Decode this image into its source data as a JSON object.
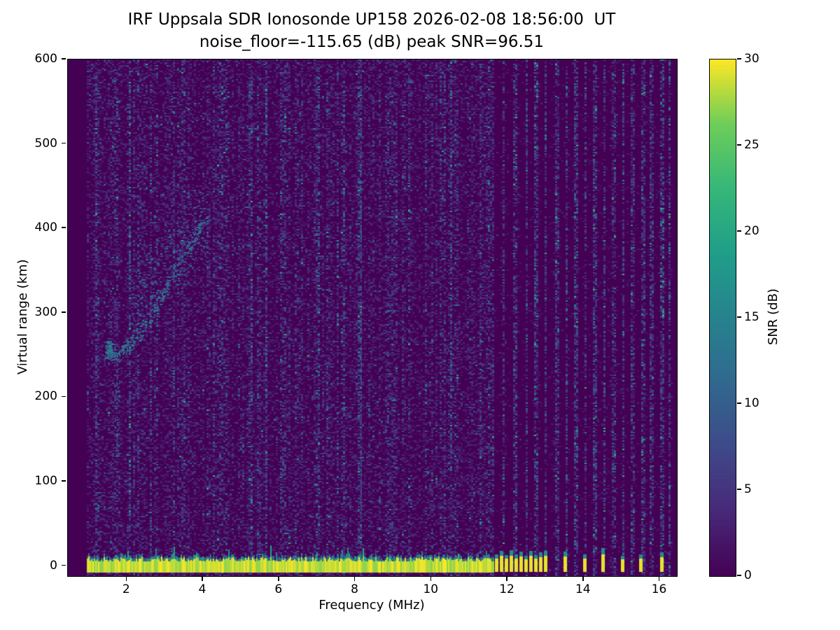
{
  "header": {
    "title_line1": "IRF Uppsala SDR Ionosonde UP158 2026-02-08 18:56:00  UT",
    "title_line2": "noise_floor=-115.65 (dB) peak SNR=96.51"
  },
  "chart_data": {
    "type": "heatmap",
    "title": "IRF Uppsala SDR Ionosonde UP158 2026-02-08 18:56:00  UT",
    "subtitle": "noise_floor=-115.65 (dB) peak SNR=96.51",
    "station": "IRF Uppsala SDR Ionosonde UP158",
    "timestamp_ut": "2026-02-08 18:56:00",
    "noise_floor_db": -115.65,
    "peak_snr_db": 96.51,
    "xlabel": "Frequency (MHz)",
    "ylabel": "Virtual range (km)",
    "xlim": [
      0.45,
      16.45
    ],
    "ylim": [
      -12,
      600
    ],
    "x_ticks": [
      2,
      4,
      6,
      8,
      10,
      12,
      14,
      16
    ],
    "y_ticks": [
      0,
      100,
      200,
      300,
      400,
      500,
      600
    ],
    "grid": false,
    "colorbar": {
      "label": "SNR (dB)",
      "min": 0,
      "max": 30,
      "ticks": [
        0,
        5,
        10,
        15,
        20,
        25,
        30
      ],
      "colormap": "viridis"
    },
    "colormap_stops": [
      [
        68,
        1,
        84
      ],
      [
        72,
        40,
        120
      ],
      [
        62,
        74,
        137
      ],
      [
        49,
        104,
        142
      ],
      [
        38,
        130,
        142
      ],
      [
        31,
        158,
        137
      ],
      [
        53,
        183,
        121
      ],
      [
        109,
        205,
        89
      ],
      [
        253,
        231,
        37
      ]
    ],
    "background_color": "#ffffff",
    "seed": 42,
    "features": {
      "data_freq_range_mhz": [
        0.95,
        16.3
      ],
      "ground_echo_band": {
        "freq_mhz": [
          0.95,
          11.62
        ],
        "range_km": [
          -8,
          8
        ],
        "snr_db": 30
      },
      "ground_echo_pulses": [
        [
          11.7,
          14
        ],
        [
          11.83,
          18
        ],
        [
          11.96,
          13
        ],
        [
          12.09,
          19
        ],
        [
          12.22,
          14
        ],
        [
          12.35,
          17
        ],
        [
          12.48,
          12
        ],
        [
          12.61,
          18
        ],
        [
          12.74,
          13
        ],
        [
          12.87,
          16
        ],
        [
          13.0,
          18
        ],
        [
          13.5,
          17
        ],
        [
          14.02,
          14
        ],
        [
          14.5,
          21
        ],
        [
          15.02,
          12
        ],
        [
          15.5,
          14
        ],
        [
          16.05,
          16
        ]
      ],
      "ionospheric_trace": {
        "freq_mhz": [
          1.45,
          1.6,
          1.75,
          1.95,
          2.15,
          2.4,
          2.65,
          2.9,
          3.15,
          3.45,
          3.75,
          3.95
        ],
        "range_km": [
          258,
          252,
          250,
          258,
          268,
          282,
          300,
          320,
          342,
          366,
          390,
          405
        ],
        "snr_db_range": [
          7,
          16
        ]
      },
      "spread_f_cloud": {
        "freq_mhz": [
          2.1,
          4.1
        ],
        "range_km": [
          295,
          440
        ]
      },
      "e_region_streak": {
        "freq_mhz": [
          1.68,
          1.8
        ],
        "range_km": [
          130,
          270
        ]
      },
      "persistent_rfi_line_mhz": 8.13,
      "rfi_columns_mhz": [
        8.13,
        11.9,
        12.2,
        12.5,
        12.75,
        13.0,
        13.3,
        13.55,
        13.8,
        14.05,
        14.3,
        14.55,
        14.8,
        15.05,
        15.3,
        15.55,
        15.8,
        16.05,
        16.25
      ],
      "noise": {
        "left_region_max_mhz": 11.65,
        "left_amp": 2.0,
        "right_amp": 0.6
      }
    }
  }
}
